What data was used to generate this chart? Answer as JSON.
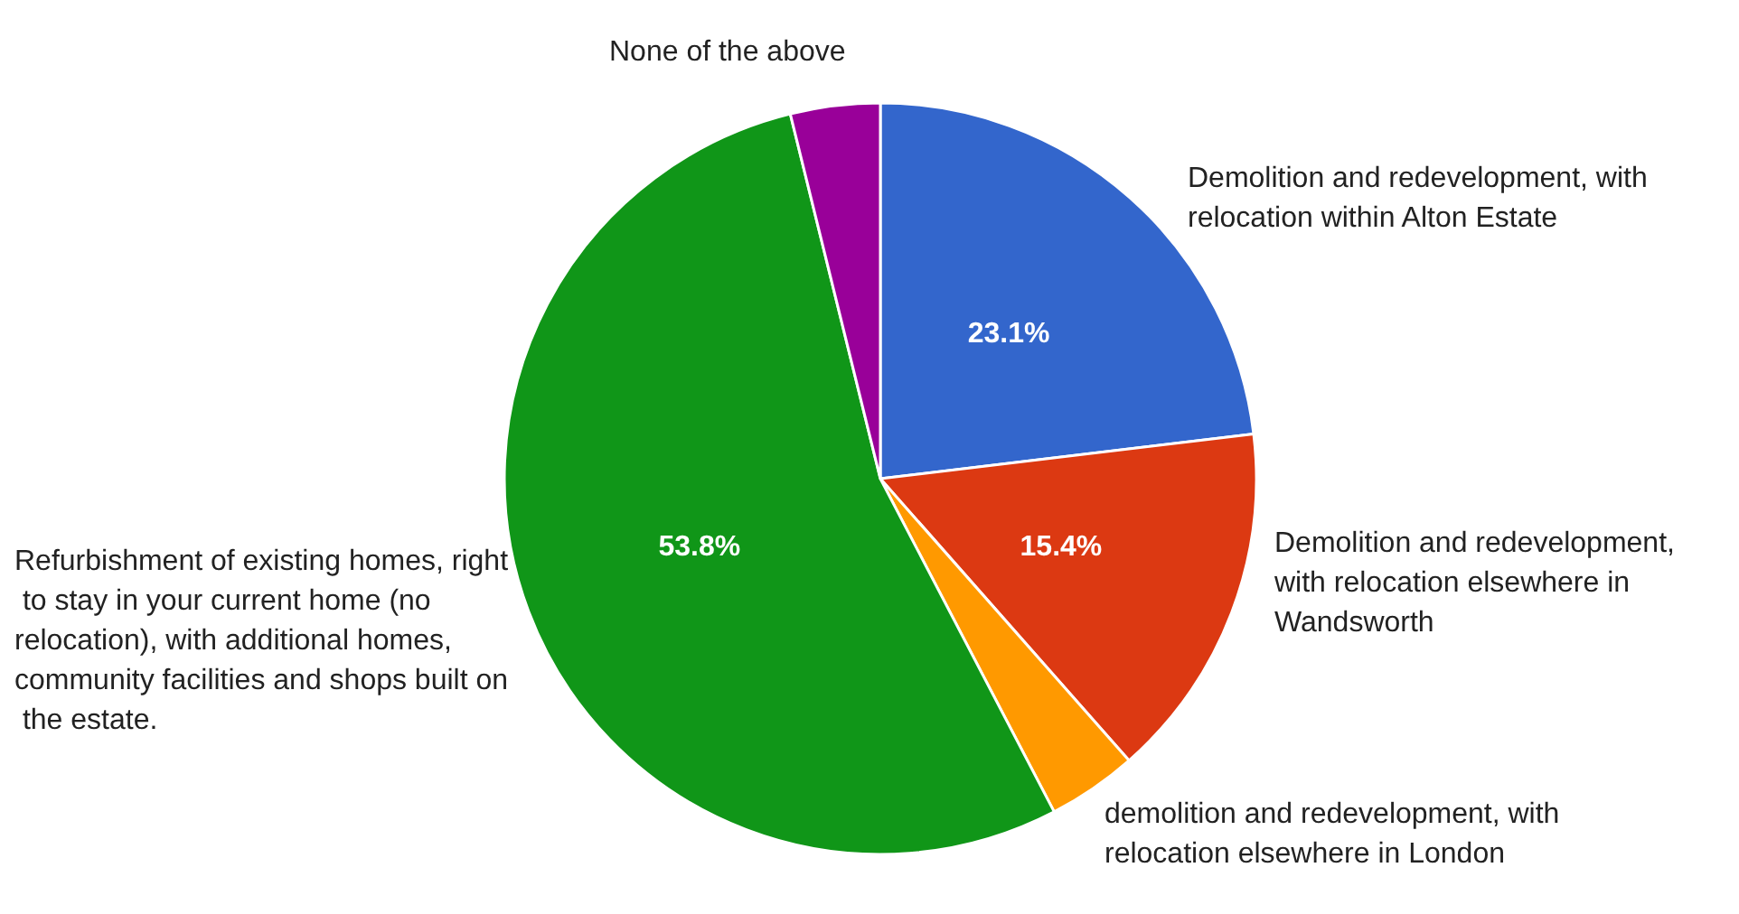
{
  "chart_data": {
    "type": "pie",
    "categories": [
      "Demolition and redevelopment, with relocation within Alton Estate",
      "Demolition and redevelopment, with relocation elsewhere in Wandsworth",
      "demolition and redevelopment, with relocation elsewhere in London",
      "Refurbishment of existing homes, right to stay in your current home (no relocation), with additional homes, community facilities and shops built on the estate.",
      "None of the above"
    ],
    "values": [
      23.1,
      15.4,
      3.85,
      53.8,
      3.85
    ],
    "colors": [
      "#3366cc",
      "#dc3912",
      "#ff9900",
      "#109618",
      "#990099"
    ],
    "value_labels": [
      "23.1%",
      "15.4%",
      null,
      "53.8%",
      null
    ],
    "legend": false
  }
}
